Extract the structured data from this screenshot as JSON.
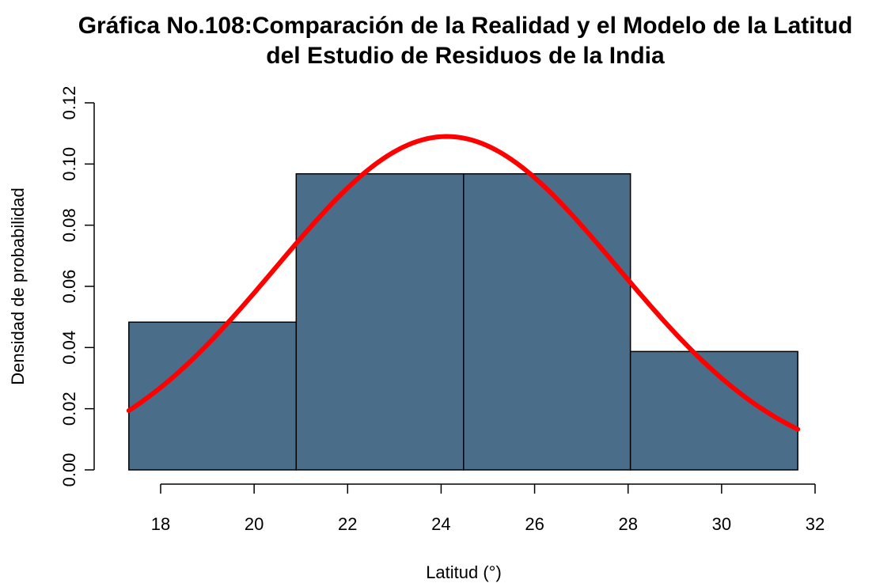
{
  "chart_data": {
    "type": "histogram",
    "title_lines": [
      "Gráfica No.108:Comparación de la Realidad y el Modelo de la Latitud",
      "del Estudio de Residuos de la India"
    ],
    "xlabel": "Latitud (°)",
    "ylabel": "Densidad de probabilidad",
    "xlim": [
      17.3,
      31.6
    ],
    "ylim": [
      0,
      0.12
    ],
    "x_ticks": [
      18,
      20,
      22,
      24,
      26,
      28,
      30,
      32
    ],
    "x_tick_labels": [
      "18",
      "20",
      "22",
      "24",
      "26",
      "28",
      "30",
      "32"
    ],
    "y_ticks": [
      0,
      0.02,
      0.04,
      0.06,
      0.08,
      0.1,
      0.12
    ],
    "y_tick_labels": [
      "0.00",
      "0.02",
      "0.04",
      "0.06",
      "0.08",
      "0.10",
      "0.12"
    ],
    "grid": false,
    "bars": [
      {
        "x0": 17.32,
        "x1": 20.9,
        "density": 0.0483
      },
      {
        "x0": 20.9,
        "x1": 24.48,
        "density": 0.0968
      },
      {
        "x0": 24.48,
        "x1": 28.05,
        "density": 0.0968
      },
      {
        "x0": 28.05,
        "x1": 31.63,
        "density": 0.0387
      }
    ],
    "density_curve": {
      "type": "normal",
      "mean": 24.12,
      "sd": 3.66,
      "x_range": [
        17.32,
        31.63
      ]
    },
    "colors": {
      "bar_fill": "#4a6e8a",
      "bar_stroke": "#000000",
      "curve": "#ff0000",
      "axis": "#000000"
    }
  }
}
